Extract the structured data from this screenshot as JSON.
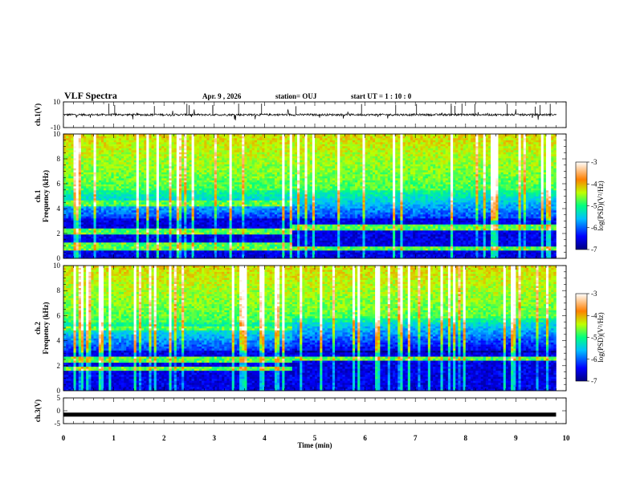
{
  "header": {
    "title": "VLF Spectra",
    "date": "Apr. 9  , 2026",
    "station": "station= OUJ",
    "start": "start  UT =   1 : 10 : 0"
  },
  "chart_data": [
    {
      "type": "line",
      "panel": "waveform-ch1",
      "ylabel": "ch.1(V)",
      "ylim": [
        -10,
        10
      ],
      "yticks": [
        "10",
        "-10"
      ],
      "baseline_v": 0,
      "line_color": "#000000"
    },
    {
      "type": "heatmap",
      "panel": "spectrogram-ch1",
      "ylabel": "ch.1\nFrequency (kHz)",
      "ylim": [
        0,
        10
      ],
      "yticks": [
        "0",
        "2",
        "4",
        "6",
        "8",
        "10"
      ],
      "change_min": 4.55,
      "bands_before": [
        [
          0.7,
          1.3
        ],
        [
          2.0,
          2.4
        ],
        [
          4.2,
          4.7
        ]
      ],
      "bands_after": [
        [
          2.3,
          2.7
        ],
        [
          0.6,
          1.0
        ]
      ],
      "colorbar": {
        "label": "log(PSD)(V²/Hz)",
        "ticks": [
          "-3",
          "-4",
          "-5",
          "-6",
          "-7"
        ],
        "range": [
          -7,
          -3
        ]
      }
    },
    {
      "type": "heatmap",
      "panel": "spectrogram-ch2",
      "ylabel": "ch.2\nFrequency (kHz)",
      "ylim": [
        0,
        10
      ],
      "yticks": [
        "0",
        "2",
        "4",
        "6",
        "8",
        "10"
      ],
      "change_min": 4.55,
      "bands_before": [
        [
          4.8,
          5.2
        ],
        [
          2.3,
          2.8
        ],
        [
          1.6,
          1.9
        ]
      ],
      "bands_after": [
        [
          2.5,
          2.7
        ]
      ],
      "colorbar": {
        "label": "log(PSD)(V²/Hz)",
        "ticks": [
          "-3",
          "-4",
          "-5",
          "-6",
          "-7"
        ],
        "range": [
          -7,
          -3
        ]
      }
    },
    {
      "type": "line",
      "panel": "waveform-ch3",
      "ylabel": "ch.3(V)",
      "ylim": [
        -5,
        5
      ],
      "yticks": [
        "5",
        "0",
        "-5"
      ],
      "baseline_v": -1.5,
      "line_color": "#000000"
    }
  ],
  "xaxis": {
    "label": "Time  (min)",
    "xlim": [
      0,
      10
    ],
    "ticks": [
      "0",
      "1",
      "2",
      "3",
      "4",
      "5",
      "6",
      "7",
      "8",
      "9",
      "10"
    ]
  }
}
